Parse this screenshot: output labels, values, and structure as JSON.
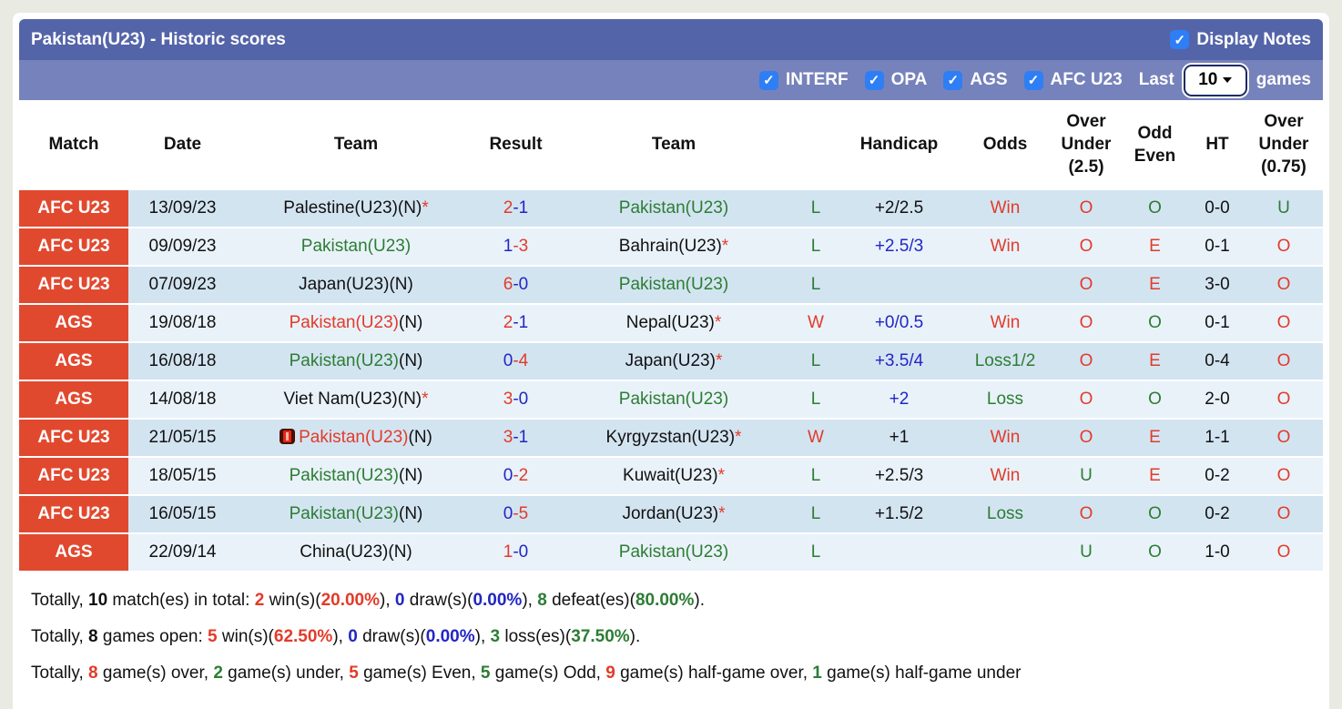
{
  "panel": {
    "title": "Pakistan(U23) - Historic scores",
    "display_notes_label": "Display Notes",
    "filters": [
      {
        "label": "INTERF",
        "checked": true
      },
      {
        "label": "OPA",
        "checked": true
      },
      {
        "label": "AGS",
        "checked": true
      },
      {
        "label": "AFC U23",
        "checked": true
      }
    ],
    "last_label": "Last",
    "games_count": "10",
    "games_label": "games"
  },
  "colors": {
    "red": "#e23b2a",
    "green": "#2c7d33",
    "blue": "#2126c4",
    "black": "#111111",
    "badge": "#e1492f",
    "title_bar": "#5464a9",
    "sub_bar": "#7682bb",
    "row_dark": "#d3e4f1",
    "row_light": "#e9f2f9",
    "checkbox_blue": "#2e7ef5"
  },
  "table": {
    "headers": [
      "Match",
      "Date",
      "Team",
      "Result",
      "Team",
      "",
      "Handicap",
      "Odds",
      "Over\nUnder\n(2.5)",
      "Odd\nEven",
      "HT",
      "Over\nUnder\n(0.75)"
    ],
    "rows": [
      {
        "badge": "AFC U23",
        "date": "13/09/23",
        "team1": [
          {
            "t": "Palestine(U23)(N)",
            "c": "black"
          },
          {
            "t": "*",
            "c": "red"
          }
        ],
        "result": {
          "home": "2",
          "home_c": "red",
          "away": "1",
          "away_c": "blue"
        },
        "team2": [
          {
            "t": "Pakistan(U23)",
            "c": "green"
          }
        ],
        "wl": {
          "t": "L",
          "c": "green"
        },
        "handicap": {
          "t": "+2/2.5",
          "c": "black"
        },
        "odds": {
          "t": "Win",
          "c": "red"
        },
        "ou25": {
          "t": "O",
          "c": "red"
        },
        "oe": {
          "t": "O",
          "c": "green"
        },
        "ht": "0-0",
        "ou075": {
          "t": "U",
          "c": "green"
        }
      },
      {
        "badge": "AFC U23",
        "date": "09/09/23",
        "team1": [
          {
            "t": "Pakistan(U23)",
            "c": "green"
          }
        ],
        "result": {
          "home": "1",
          "home_c": "blue",
          "away": "3",
          "away_c": "red"
        },
        "team2": [
          {
            "t": "Bahrain(U23)",
            "c": "black"
          },
          {
            "t": "*",
            "c": "red"
          }
        ],
        "wl": {
          "t": "L",
          "c": "green"
        },
        "handicap": {
          "t": "+2.5/3",
          "c": "blue"
        },
        "odds": {
          "t": "Win",
          "c": "red"
        },
        "ou25": {
          "t": "O",
          "c": "red"
        },
        "oe": {
          "t": "E",
          "c": "red"
        },
        "ht": "0-1",
        "ou075": {
          "t": "O",
          "c": "red"
        }
      },
      {
        "badge": "AFC U23",
        "date": "07/09/23",
        "team1": [
          {
            "t": "Japan(U23)(N)",
            "c": "black"
          }
        ],
        "result": {
          "home": "6",
          "home_c": "red",
          "away": "0",
          "away_c": "blue"
        },
        "team2": [
          {
            "t": "Pakistan(U23)",
            "c": "green"
          }
        ],
        "wl": {
          "t": "L",
          "c": "green"
        },
        "handicap": {
          "t": "",
          "c": "black"
        },
        "odds": {
          "t": "",
          "c": "black"
        },
        "ou25": {
          "t": "O",
          "c": "red"
        },
        "oe": {
          "t": "E",
          "c": "red"
        },
        "ht": "3-0",
        "ou075": {
          "t": "O",
          "c": "red"
        }
      },
      {
        "badge": "AGS",
        "date": "19/08/18",
        "team1": [
          {
            "t": "Pakistan(U23)",
            "c": "red"
          },
          {
            "t": "(N)",
            "c": "black"
          }
        ],
        "result": {
          "home": "2",
          "home_c": "red",
          "away": "1",
          "away_c": "blue"
        },
        "team2": [
          {
            "t": "Nepal(U23)",
            "c": "black"
          },
          {
            "t": "*",
            "c": "red"
          }
        ],
        "wl": {
          "t": "W",
          "c": "red"
        },
        "handicap": {
          "t": "+0/0.5",
          "c": "blue"
        },
        "odds": {
          "t": "Win",
          "c": "red"
        },
        "ou25": {
          "t": "O",
          "c": "red"
        },
        "oe": {
          "t": "O",
          "c": "green"
        },
        "ht": "0-1",
        "ou075": {
          "t": "O",
          "c": "red"
        }
      },
      {
        "badge": "AGS",
        "date": "16/08/18",
        "team1": [
          {
            "t": "Pakistan(U23)",
            "c": "green"
          },
          {
            "t": "(N)",
            "c": "black"
          }
        ],
        "result": {
          "home": "0",
          "home_c": "blue",
          "away": "4",
          "away_c": "red"
        },
        "team2": [
          {
            "t": "Japan(U23)",
            "c": "black"
          },
          {
            "t": "*",
            "c": "red"
          }
        ],
        "wl": {
          "t": "L",
          "c": "green"
        },
        "handicap": {
          "t": "+3.5/4",
          "c": "blue"
        },
        "odds": {
          "t": "Loss1/2",
          "c": "green"
        },
        "ou25": {
          "t": "O",
          "c": "red"
        },
        "oe": {
          "t": "E",
          "c": "red"
        },
        "ht": "0-4",
        "ou075": {
          "t": "O",
          "c": "red"
        }
      },
      {
        "badge": "AGS",
        "date": "14/08/18",
        "team1": [
          {
            "t": "Viet Nam(U23)(N)",
            "c": "black"
          },
          {
            "t": "*",
            "c": "red"
          }
        ],
        "result": {
          "home": "3",
          "home_c": "red",
          "away": "0",
          "away_c": "blue"
        },
        "team2": [
          {
            "t": "Pakistan(U23)",
            "c": "green"
          }
        ],
        "wl": {
          "t": "L",
          "c": "green"
        },
        "handicap": {
          "t": "+2",
          "c": "blue"
        },
        "odds": {
          "t": "Loss",
          "c": "green"
        },
        "ou25": {
          "t": "O",
          "c": "red"
        },
        "oe": {
          "t": "O",
          "c": "green"
        },
        "ht": "2-0",
        "ou075": {
          "t": "O",
          "c": "red"
        }
      },
      {
        "badge": "AFC U23",
        "date": "21/05/15",
        "team1": [
          {
            "icon": "red-card"
          },
          {
            "t": "Pakistan(U23)",
            "c": "red"
          },
          {
            "t": "(N)",
            "c": "black"
          }
        ],
        "result": {
          "home": "3",
          "home_c": "red",
          "away": "1",
          "away_c": "blue"
        },
        "team2": [
          {
            "t": "Kyrgyzstan(U23)",
            "c": "black"
          },
          {
            "t": "*",
            "c": "red"
          }
        ],
        "wl": {
          "t": "W",
          "c": "red"
        },
        "handicap": {
          "t": "+1",
          "c": "black"
        },
        "odds": {
          "t": "Win",
          "c": "red"
        },
        "ou25": {
          "t": "O",
          "c": "red"
        },
        "oe": {
          "t": "E",
          "c": "red"
        },
        "ht": "1-1",
        "ou075": {
          "t": "O",
          "c": "red"
        }
      },
      {
        "badge": "AFC U23",
        "date": "18/05/15",
        "team1": [
          {
            "t": "Pakistan(U23)",
            "c": "green"
          },
          {
            "t": "(N)",
            "c": "black"
          }
        ],
        "result": {
          "home": "0",
          "home_c": "blue",
          "away": "2",
          "away_c": "red"
        },
        "team2": [
          {
            "t": "Kuwait(U23)",
            "c": "black"
          },
          {
            "t": "*",
            "c": "red"
          }
        ],
        "wl": {
          "t": "L",
          "c": "green"
        },
        "handicap": {
          "t": "+2.5/3",
          "c": "black"
        },
        "odds": {
          "t": "Win",
          "c": "red"
        },
        "ou25": {
          "t": "U",
          "c": "green"
        },
        "oe": {
          "t": "E",
          "c": "red"
        },
        "ht": "0-2",
        "ou075": {
          "t": "O",
          "c": "red"
        }
      },
      {
        "badge": "AFC U23",
        "date": "16/05/15",
        "team1": [
          {
            "t": "Pakistan(U23)",
            "c": "green"
          },
          {
            "t": "(N)",
            "c": "black"
          }
        ],
        "result": {
          "home": "0",
          "home_c": "blue",
          "away": "5",
          "away_c": "red"
        },
        "team2": [
          {
            "t": "Jordan(U23)",
            "c": "black"
          },
          {
            "t": "*",
            "c": "red"
          }
        ],
        "wl": {
          "t": "L",
          "c": "green"
        },
        "handicap": {
          "t": "+1.5/2",
          "c": "black"
        },
        "odds": {
          "t": "Loss",
          "c": "green"
        },
        "ou25": {
          "t": "O",
          "c": "red"
        },
        "oe": {
          "t": "O",
          "c": "green"
        },
        "ht": "0-2",
        "ou075": {
          "t": "O",
          "c": "red"
        }
      },
      {
        "badge": "AGS",
        "date": "22/09/14",
        "team1": [
          {
            "t": "China(U23)(N)",
            "c": "black"
          }
        ],
        "result": {
          "home": "1",
          "home_c": "red",
          "away": "0",
          "away_c": "blue"
        },
        "team2": [
          {
            "t": "Pakistan(U23)",
            "c": "green"
          }
        ],
        "wl": {
          "t": "L",
          "c": "green"
        },
        "handicap": {
          "t": "",
          "c": "black"
        },
        "odds": {
          "t": "",
          "c": "black"
        },
        "ou25": {
          "t": "U",
          "c": "green"
        },
        "oe": {
          "t": "O",
          "c": "green"
        },
        "ht": "1-0",
        "ou075": {
          "t": "O",
          "c": "red"
        }
      }
    ]
  },
  "summary": [
    {
      "name": "summary-total-matches",
      "parts": [
        {
          "t": "Totally, ",
          "c": "black"
        },
        {
          "t": "10",
          "c": "black",
          "b": true
        },
        {
          "t": " match(es) in total: ",
          "c": "black"
        },
        {
          "t": "2",
          "c": "red",
          "b": true
        },
        {
          "t": " win(s)(",
          "c": "black"
        },
        {
          "t": "20.00%",
          "c": "red",
          "b": true
        },
        {
          "t": "), ",
          "c": "black"
        },
        {
          "t": "0",
          "c": "blue",
          "b": true
        },
        {
          "t": " draw(s)(",
          "c": "black"
        },
        {
          "t": "0.00%",
          "c": "blue",
          "b": true
        },
        {
          "t": "), ",
          "c": "black"
        },
        {
          "t": "8",
          "c": "green",
          "b": true
        },
        {
          "t": " defeat(es)(",
          "c": "black"
        },
        {
          "t": "80.00%",
          "c": "green",
          "b": true
        },
        {
          "t": ").",
          "c": "black"
        }
      ]
    },
    {
      "name": "summary-games-open",
      "parts": [
        {
          "t": "Totally, ",
          "c": "black"
        },
        {
          "t": "8",
          "c": "black",
          "b": true
        },
        {
          "t": " games open: ",
          "c": "black"
        },
        {
          "t": "5",
          "c": "red",
          "b": true
        },
        {
          "t": " win(s)(",
          "c": "black"
        },
        {
          "t": "62.50%",
          "c": "red",
          "b": true
        },
        {
          "t": "), ",
          "c": "black"
        },
        {
          "t": "0",
          "c": "blue",
          "b": true
        },
        {
          "t": " draw(s)(",
          "c": "black"
        },
        {
          "t": "0.00%",
          "c": "blue",
          "b": true
        },
        {
          "t": "), ",
          "c": "black"
        },
        {
          "t": "3",
          "c": "green",
          "b": true
        },
        {
          "t": " loss(es)(",
          "c": "black"
        },
        {
          "t": "37.50%",
          "c": "green",
          "b": true
        },
        {
          "t": ").",
          "c": "black"
        }
      ]
    },
    {
      "name": "summary-over-under",
      "parts": [
        {
          "t": "Totally, ",
          "c": "black"
        },
        {
          "t": "8",
          "c": "red",
          "b": true
        },
        {
          "t": " game(s) over, ",
          "c": "black"
        },
        {
          "t": "2",
          "c": "green",
          "b": true
        },
        {
          "t": " game(s) under, ",
          "c": "black"
        },
        {
          "t": "5",
          "c": "red",
          "b": true
        },
        {
          "t": " game(s) Even, ",
          "c": "black"
        },
        {
          "t": "5",
          "c": "green",
          "b": true
        },
        {
          "t": " game(s) Odd, ",
          "c": "black"
        },
        {
          "t": "9",
          "c": "red",
          "b": true
        },
        {
          "t": " game(s) half-game over, ",
          "c": "black"
        },
        {
          "t": "1",
          "c": "green",
          "b": true
        },
        {
          "t": " game(s) half-game under",
          "c": "black"
        }
      ]
    }
  ]
}
